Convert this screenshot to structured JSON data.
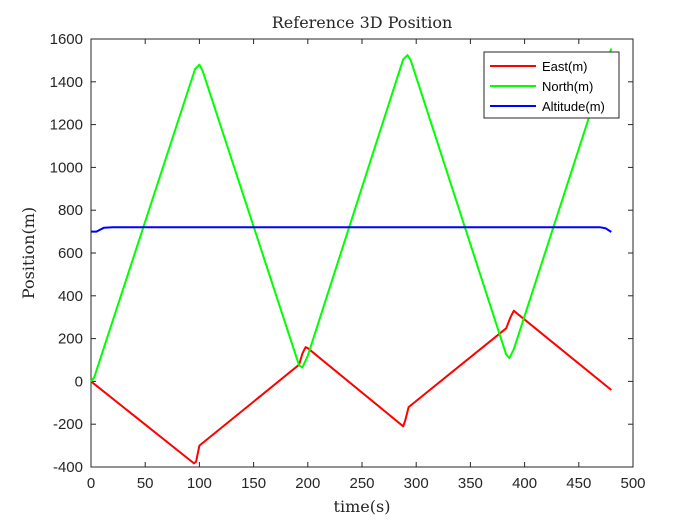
{
  "chart_data": {
    "type": "line",
    "title": "Reference 3D Position",
    "xlabel": "time(s)",
    "ylabel": "Position(m)",
    "xlim": [
      0,
      500
    ],
    "ylim": [
      -400,
      1600
    ],
    "xticks": [
      0,
      50,
      100,
      150,
      200,
      250,
      300,
      350,
      400,
      450,
      500
    ],
    "yticks": [
      -400,
      -200,
      0,
      200,
      400,
      600,
      800,
      1000,
      1200,
      1400,
      1600
    ],
    "grid": false,
    "legend_position": "top-right",
    "series": [
      {
        "name": "East(m)",
        "color": "#ff0000",
        "x": [
          0,
          5,
          95,
          97,
          100,
          192,
          195,
          198,
          200,
          288,
          290,
          293,
          383,
          387,
          390,
          480
        ],
        "y": [
          0,
          -20,
          -383,
          -375,
          -300,
          78,
          130,
          160,
          155,
          -210,
          -180,
          -120,
          248,
          300,
          330,
          -40
        ]
      },
      {
        "name": "North(m)",
        "color": "#00ff00",
        "x": [
          0,
          3,
          96,
          100,
          103,
          192,
          195,
          200,
          288,
          292,
          295,
          383,
          386,
          390,
          480
        ],
        "y": [
          0,
          20,
          1460,
          1480,
          1450,
          75,
          65,
          120,
          1505,
          1525,
          1500,
          125,
          110,
          150,
          1555
        ]
      },
      {
        "name": "Altitude(m)",
        "color": "#0000ff",
        "x": [
          0,
          5,
          12,
          20,
          470,
          475,
          480
        ],
        "y": [
          700,
          700,
          718,
          720,
          720,
          715,
          698
        ]
      }
    ]
  }
}
